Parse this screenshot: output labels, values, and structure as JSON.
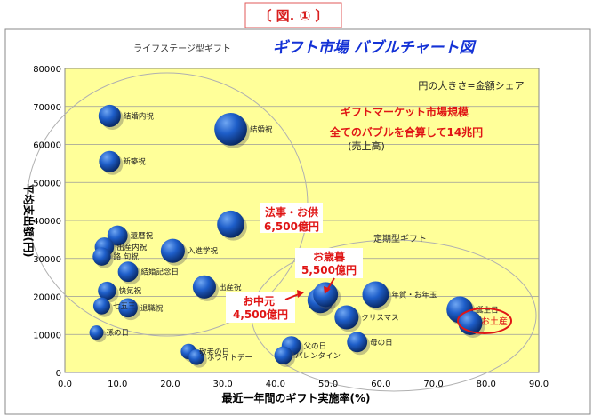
{
  "figure_label": "〔 図. ① 〕",
  "chart_data": {
    "type": "scatter",
    "title": "ギフト市場 バブルチャート図",
    "xlabel": "最近一年間のギフト実施率(%)",
    "ylabel": "平均支出額(円)",
    "xlim": [
      0,
      90
    ],
    "ylim": [
      0,
      80000
    ],
    "x_ticks": [
      0,
      10,
      20,
      30,
      40,
      50,
      60,
      70,
      80,
      90
    ],
    "x_tick_labels": [
      "0.0",
      "10.0",
      "20.0",
      "30.0",
      "40.0",
      "50.0",
      "60.0",
      "70.0",
      "80.0",
      "90.0"
    ],
    "y_ticks": [
      0,
      10000,
      20000,
      30000,
      40000,
      50000,
      60000,
      70000,
      80000
    ],
    "y_tick_labels": [
      "0",
      "10000",
      "20000",
      "30000",
      "40000",
      "50000",
      "60000",
      "70000",
      "80000"
    ],
    "grid": true,
    "note": "円の大きさ=金額シェア",
    "groups": [
      "ライフステージ型ギフト",
      "定期型ギフト"
    ],
    "points": [
      {
        "label": "結婚内祝",
        "x": 8.5,
        "y": 67500,
        "size": 1.1
      },
      {
        "label": "結婚祝",
        "x": 31.5,
        "y": 64000,
        "size": 2.5
      },
      {
        "label": "新築祝",
        "x": 8.5,
        "y": 55500,
        "size": 1.0
      },
      {
        "label": "還暦祝",
        "x": 10.0,
        "y": 36000,
        "size": 0.9
      },
      {
        "label": "",
        "x": 31.5,
        "y": 39000,
        "size": 1.7
      },
      {
        "label": "出産内祝",
        "x": 7.5,
        "y": 33000,
        "size": 0.8
      },
      {
        "label": "路 句祝",
        "x": 7.0,
        "y": 30500,
        "size": 0.7
      },
      {
        "label": "入進学祝",
        "x": 20.5,
        "y": 32000,
        "size": 1.3
      },
      {
        "label": "結婚記念日",
        "x": 12.0,
        "y": 26500,
        "size": 0.9
      },
      {
        "label": "出産祝",
        "x": 26.5,
        "y": 22500,
        "size": 1.2
      },
      {
        "label": "快気祝",
        "x": 8.0,
        "y": 21500,
        "size": 0.7
      },
      {
        "label": "七五三",
        "x": 7.0,
        "y": 17500,
        "size": 0.6
      },
      {
        "label": "退職祝",
        "x": 12.0,
        "y": 17000,
        "size": 0.8
      },
      {
        "label": "",
        "x": 48.5,
        "y": 19000,
        "size": 1.5
      },
      {
        "label": "",
        "x": 49.5,
        "y": 20500,
        "size": 1.4
      },
      {
        "label": "クリスマス",
        "x": 53.5,
        "y": 14500,
        "size": 1.3
      },
      {
        "label": "年賀・お年玉",
        "x": 59.0,
        "y": 20500,
        "size": 1.6
      },
      {
        "label": "誕生日",
        "x": 75.0,
        "y": 16500,
        "size": 1.6
      },
      {
        "label": "",
        "x": 77.0,
        "y": 13000,
        "size": 1.3
      },
      {
        "label": "孫の日",
        "x": 6.0,
        "y": 10500,
        "size": 0.4
      },
      {
        "label": "敬老の日",
        "x": 23.5,
        "y": 5500,
        "size": 0.5
      },
      {
        "label": "ホワイトデー",
        "x": 25.0,
        "y": 4000,
        "size": 0.5
      },
      {
        "label": "父の日",
        "x": 43.0,
        "y": 7000,
        "size": 0.8
      },
      {
        "label": "母の日",
        "x": 55.5,
        "y": 8000,
        "size": 0.9
      },
      {
        "label": "バレンタイン",
        "x": 41.5,
        "y": 4500,
        "size": 0.7
      }
    ],
    "annotations": {
      "market_title": "ギフトマーケット市場規模",
      "market_sum": "全てのバブルを合算して14兆円",
      "market_note": "(売上高)",
      "houji_1": "法事・お供",
      "houji_2": "6,500億円",
      "oseibo_1": "お歳暮",
      "oseibo_2": "5,500億円",
      "ochugen_1": "お中元",
      "ochugen_2": "4,500億円",
      "omiyage": "お土産"
    }
  }
}
